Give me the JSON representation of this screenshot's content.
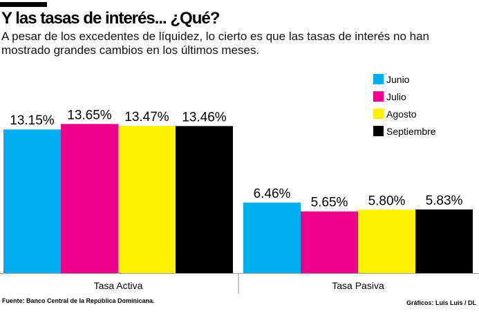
{
  "header": {
    "title": "Y las tasas de interés... ¿Qué?",
    "subtitle": "A pesar de los excedentes de líquidez, lo cierto es que las tasas de interés no han mostrado grandes cambios en los últimos meses."
  },
  "footer": {
    "source": "Fuente: Banco Central de la República Dominicana.",
    "credit": "Gráficos: Luis Luis / DL"
  },
  "chart_data": {
    "type": "bar",
    "categories": [
      "Tasa Activa",
      "Tasa Pasiva"
    ],
    "series": [
      {
        "name": "Junio",
        "color": "#00aeef",
        "values": [
          13.15,
          6.46
        ],
        "labels": [
          "13.15%",
          "6.46%"
        ]
      },
      {
        "name": "Julio",
        "color": "#ec008c",
        "values": [
          13.65,
          5.65
        ],
        "labels": [
          "13.65%",
          "5.65%"
        ]
      },
      {
        "name": "Agosto",
        "color": "#fff200",
        "values": [
          13.47,
          5.8
        ],
        "labels": [
          "13.47%",
          "5.80%"
        ]
      },
      {
        "name": "Septiembre",
        "color": "#000000",
        "values": [
          13.46,
          5.83
        ],
        "labels": [
          "13.46%",
          "5.83%"
        ]
      }
    ],
    "ylim": [
      0,
      25
    ],
    "legend": "top-right",
    "grid": false
  }
}
